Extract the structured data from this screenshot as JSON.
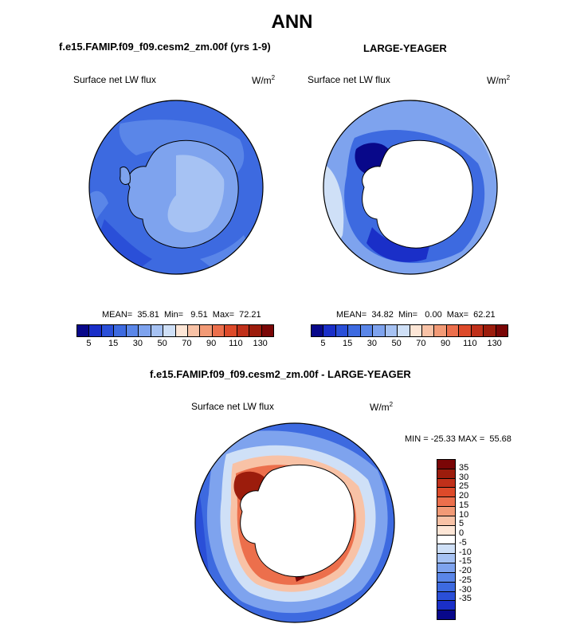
{
  "title": "ANN",
  "panels": [
    {
      "title": "f.e15.FAMIP.f09_f09.cesm2_zm.00f (yrs 1-9)",
      "variable": "Surface net LW flux",
      "units": "W/m",
      "units_exp": "2",
      "stats": "MEAN=  35.81  Min=   9.51  Max=  72.21"
    },
    {
      "title": "LARGE-YEAGER",
      "variable": "Surface net LW flux",
      "units": "W/m",
      "units_exp": "2",
      "stats": "MEAN=  34.82  Min=   0.00  Max=  62.21"
    }
  ],
  "diff_panel": {
    "title": "f.e15.FAMIP.f09_f09.cesm2_zm.00f - LARGE-YEAGER",
    "variable": "Surface net LW flux",
    "units": "W/m",
    "units_exp": "2",
    "minmax": "MIN = -25.33 MAX =  55.68"
  },
  "colorbar_top": {
    "colors": [
      "#08088a",
      "#1a2fc8",
      "#2a4fd8",
      "#3d6ae0",
      "#5a86e8",
      "#7ea3ee",
      "#a6c2f3",
      "#cfe0f7",
      "#fde6d6",
      "#f8c2a6",
      "#f29a76",
      "#ec6f4c",
      "#dd4a2a",
      "#c0301a",
      "#9c1c0c",
      "#7a0606"
    ],
    "ticks": [
      "5",
      "15",
      "30",
      "50",
      "70",
      "90",
      "110",
      "130"
    ]
  },
  "colorbar_diff": {
    "colors": [
      "#7a0606",
      "#9c1c0c",
      "#c0301a",
      "#dd4a2a",
      "#ec6f4c",
      "#f29a76",
      "#f8c2a6",
      "#fde6d6",
      "#ffffff",
      "#cfe0f7",
      "#a6c2f3",
      "#7ea3ee",
      "#5a86e8",
      "#3d6ae0",
      "#2a4fd8",
      "#1a2fc8",
      "#08088a"
    ],
    "ticks": [
      "35",
      "30",
      "25",
      "20",
      "15",
      "10",
      "5",
      "0",
      "-5",
      "-10",
      "-15",
      "-20",
      "-25",
      "-30",
      "-35"
    ]
  }
}
